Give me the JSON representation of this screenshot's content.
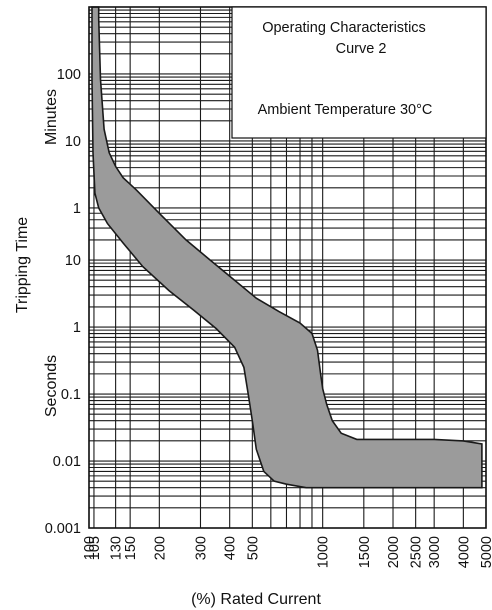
{
  "chart_data": {
    "type": "area",
    "title": "Operating Characteristics",
    "subtitle": "Curve 2",
    "annotation": "Ambient Temperature 30°C",
    "xlabel": "(%) Rated Current",
    "ylabel": "Tripping Time",
    "ylabel_minutes": "Minutes",
    "ylabel_seconds": "Seconds",
    "x_scale": "log",
    "y_scale": "log",
    "xlim": [
      100,
      5000
    ],
    "ylim_seconds": [
      0.001,
      60000
    ],
    "grid": true,
    "legend": "none",
    "band_color": "#9b9b9b",
    "x_ticks": [
      {
        "label": "100",
        "value": 100
      },
      {
        "label": "105",
        "value": 105
      },
      {
        "label": "130",
        "value": 130
      },
      {
        "label": "150",
        "value": 150
      },
      {
        "label": "200",
        "value": 200
      },
      {
        "label": "300",
        "value": 300
      },
      {
        "label": "400",
        "value": 400
      },
      {
        "label": "500",
        "value": 500
      },
      {
        "label": "1000",
        "value": 1000
      },
      {
        "label": "1500",
        "value": 1500
      },
      {
        "label": "2000",
        "value": 2000
      },
      {
        "label": "2500",
        "value": 2500
      },
      {
        "label": "3000",
        "value": 3000
      },
      {
        "label": "4000",
        "value": 4000
      },
      {
        "label": "5000",
        "value": 5000
      }
    ],
    "y_ticks": [
      {
        "label": "100",
        "unit": "minutes",
        "seconds": 6000
      },
      {
        "label": "10",
        "unit": "minutes",
        "seconds": 600
      },
      {
        "label": "1",
        "unit": "minutes",
        "seconds": 60
      },
      {
        "label": "10",
        "unit": "seconds",
        "seconds": 10
      },
      {
        "label": "1",
        "unit": "seconds",
        "seconds": 1
      },
      {
        "label": "0.1",
        "unit": "seconds",
        "seconds": 0.1
      },
      {
        "label": "0.01",
        "unit": "seconds",
        "seconds": 0.01
      },
      {
        "label": "0.001",
        "unit": "seconds",
        "seconds": 0.001
      }
    ],
    "series": [
      {
        "role": "upper-bound",
        "x": [
          110,
          110,
          112,
          116,
          122,
          130,
          140,
          160,
          200,
          260,
          330,
          420,
          520,
          650,
          800,
          900,
          950,
          980,
          1000,
          1040,
          1100,
          1200,
          1400,
          2000,
          3000,
          4000,
          4800
        ],
        "y": [
          60000,
          40000,
          5000,
          900,
          400,
          250,
          170,
          110,
          50,
          20,
          10,
          5,
          2.7,
          1.7,
          1.15,
          0.8,
          0.45,
          0.2,
          0.12,
          0.07,
          0.04,
          0.026,
          0.021,
          0.021,
          0.021,
          0.02,
          0.018
        ]
      },
      {
        "role": "lower-bound",
        "x": [
          103,
          103,
          104,
          106,
          110,
          120,
          140,
          170,
          220,
          280,
          350,
          420,
          460,
          480,
          500,
          520,
          560,
          620,
          700,
          850,
          1200,
          2000,
          4800
        ],
        "y": [
          60000,
          5000,
          400,
          100,
          60,
          35,
          18,
          8,
          3.5,
          1.8,
          0.95,
          0.5,
          0.25,
          0.1,
          0.04,
          0.015,
          0.007,
          0.005,
          0.0045,
          0.004,
          0.004,
          0.004,
          0.004
        ]
      }
    ]
  }
}
